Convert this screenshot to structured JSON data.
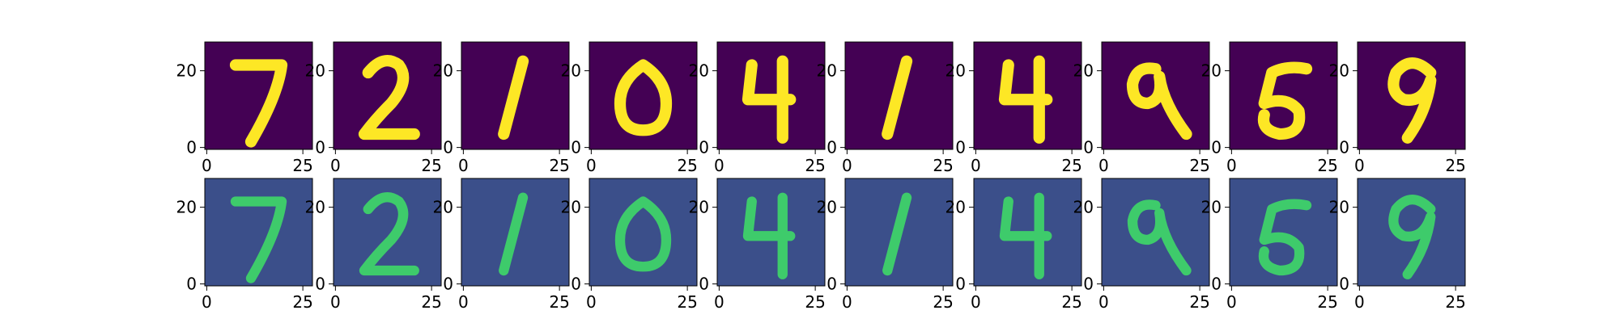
{
  "chart_data": {
    "type": "heatmap",
    "colormap": "viridis",
    "layout": {
      "rows": 2,
      "cols": 10
    },
    "image_size": [
      28,
      28
    ],
    "xlim": [
      -0.5,
      27.5
    ],
    "ylim": [
      27.5,
      -0.5
    ],
    "xticks": [
      0,
      25
    ],
    "yticks": [
      0,
      20
    ],
    "x_tick_labels": [
      "0",
      "25"
    ],
    "y_tick_labels": [
      "0",
      "20"
    ],
    "rows": [
      {
        "row": "top",
        "images": [
          "7",
          "2",
          "1",
          "0",
          "4",
          "1",
          "4",
          "9",
          "5",
          "9"
        ]
      },
      {
        "row": "bottom",
        "images": [
          "7",
          "2",
          "1",
          "0",
          "4",
          "1",
          "4",
          "9",
          "5",
          "9"
        ]
      }
    ],
    "title": "",
    "xlabel": "",
    "ylabel": ""
  },
  "colors": {
    "viridis_low": "#440154",
    "viridis_mid": "#21918c",
    "viridis_high": "#fde725",
    "noisy_background": "#3b4f8a",
    "noisy_stroke": "#3ecb6b"
  }
}
